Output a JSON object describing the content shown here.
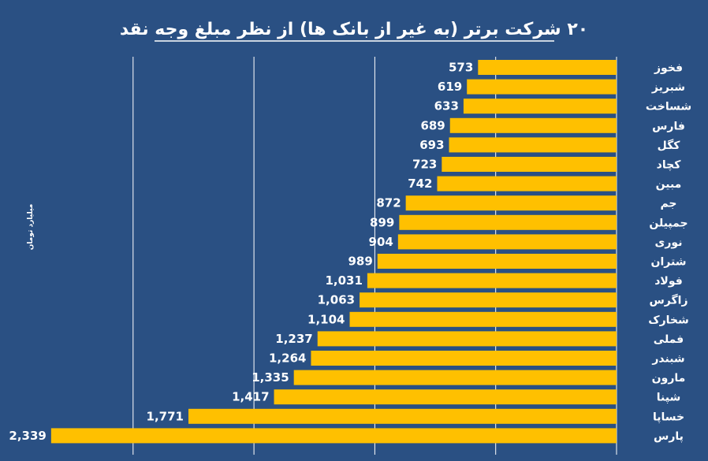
{
  "colors": {
    "background": "#2a5083",
    "bar": "#ffc000",
    "text": "#ffffff",
    "grid": "#ffffff"
  },
  "chart_data": {
    "type": "bar",
    "orientation": "horizontal",
    "title": "۲۰ شرکت برتر (به غیر از بانک ها) از نظر مبلغ وجه نقد",
    "unit_label": "میلیارد تومان",
    "categories": [
      "فخوز",
      "شبریز",
      "شساخت",
      "فارس",
      "کگل",
      "کچاد",
      "مبین",
      "جم",
      "جمپیلن",
      "نوری",
      "شتران",
      "فولاد",
      "زاگرس",
      "شخارک",
      "فملی",
      "شبندر",
      "مارون",
      "شپنا",
      "خساپا",
      "پارس"
    ],
    "values": [
      573,
      619,
      633,
      689,
      693,
      723,
      742,
      872,
      899,
      904,
      989,
      1031,
      1063,
      1104,
      1237,
      1264,
      1335,
      1417,
      1771,
      2339
    ],
    "value_labels": [
      "573",
      "619",
      "633",
      "689",
      "693",
      "723",
      "742",
      "872",
      "899",
      "904",
      "989",
      "1,031",
      "1,063",
      "1,104",
      "1,237",
      "1,264",
      "1,335",
      "1,417",
      "1,771",
      "2,339"
    ],
    "xlim": [
      0,
      2500
    ],
    "gridlines": [
      0,
      500,
      1000,
      1500,
      2000
    ],
    "grid": true,
    "bar_direction": "right-to-left"
  }
}
